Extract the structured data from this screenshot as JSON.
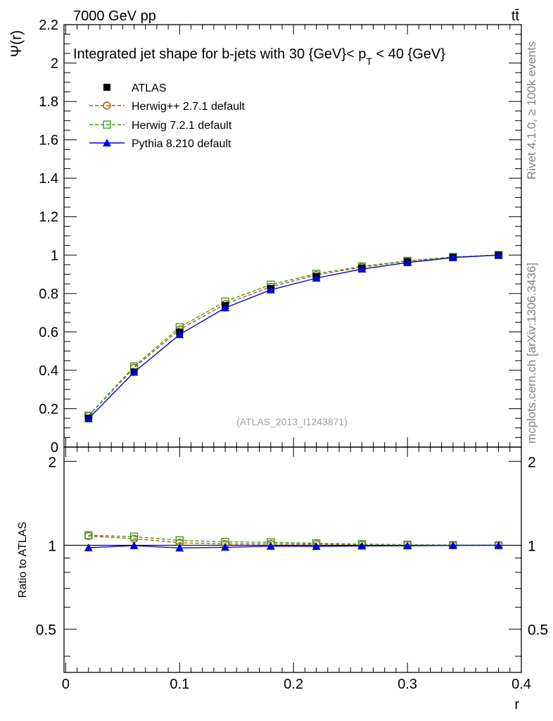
{
  "header": {
    "energy_label": "7000 GeV pp",
    "process_label": "tt̄"
  },
  "side_labels": {
    "rivet": "Rivet 4.1.0, ≥ 100k events",
    "mcplots": "mcplots.cern.ch [arXiv:1306.3436]"
  },
  "chart_data": {
    "type": "line",
    "title_prefix": "Integrated jet shape for b-jets with 30 {GeV}< p",
    "title_sub": "T",
    "title_suffix": " < 40 {GeV}",
    "watermark": "(ATLAS_2013_I1243871)",
    "xlabel": "r",
    "ylabel": "Ψ(r)",
    "ratio_ylabel": "Ratio to ATLAS",
    "xlim": [
      -0.0015,
      0.4
    ],
    "ylim": [
      0,
      2.2
    ],
    "ratio_ylim": [
      0.35,
      2.25
    ],
    "x_ticks": [
      {
        "v": 0,
        "label": "0"
      },
      {
        "v": 0.1,
        "label": "0.1"
      },
      {
        "v": 0.2,
        "label": "0.2"
      },
      {
        "v": 0.3,
        "label": "0.3"
      },
      {
        "v": 0.4,
        "label": "0.4"
      }
    ],
    "y_ticks": [
      {
        "v": 0,
        "label": "0"
      },
      {
        "v": 0.2,
        "label": "0.2"
      },
      {
        "v": 0.4,
        "label": "0.4"
      },
      {
        "v": 0.6,
        "label": "0.6"
      },
      {
        "v": 0.8,
        "label": "0.8"
      },
      {
        "v": 1.0,
        "label": "1"
      },
      {
        "v": 1.2,
        "label": "1.2"
      },
      {
        "v": 1.4,
        "label": "1.4"
      },
      {
        "v": 1.6,
        "label": "1.6"
      },
      {
        "v": 1.8,
        "label": "1.8"
      },
      {
        "v": 2.0,
        "label": "2"
      },
      {
        "v": 2.2,
        "label": "2.2"
      }
    ],
    "ratio_ticks": [
      {
        "v": 0.5,
        "label": "0.5"
      },
      {
        "v": 1,
        "label": "1"
      },
      {
        "v": 2,
        "label": "2"
      }
    ],
    "x": [
      0.02,
      0.06,
      0.1,
      0.14,
      0.18,
      0.22,
      0.26,
      0.3,
      0.34,
      0.38
    ],
    "series": [
      {
        "name": "ATLAS",
        "marker": "filled-square",
        "color": "#000000",
        "dashed": false,
        "values": [
          0.151,
          0.391,
          0.599,
          0.737,
          0.825,
          0.888,
          0.932,
          0.965,
          0.988,
          1.0
        ],
        "errors": [
          0.012,
          0.014,
          0.014,
          0.012,
          0.01,
          0.008,
          0.006,
          0.004,
          0.003,
          0.0
        ]
      },
      {
        "name": "Herwig++ 2.7.1 default",
        "marker": "open-circle",
        "color": "#b05a00",
        "dashed": true,
        "values": [
          0.163,
          0.413,
          0.612,
          0.745,
          0.835,
          0.896,
          0.937,
          0.968,
          0.989,
          1.0
        ]
      },
      {
        "name": "Herwig 7.2.1 default",
        "marker": "open-square",
        "color": "#3e9e1a",
        "dashed": true,
        "values": [
          0.164,
          0.42,
          0.624,
          0.758,
          0.846,
          0.903,
          0.941,
          0.97,
          0.99,
          1.0
        ]
      },
      {
        "name": "Pythia 8.210 default",
        "marker": "filled-triangle",
        "color": "#0000e0",
        "dashed": false,
        "values": [
          0.148,
          0.39,
          0.586,
          0.725,
          0.819,
          0.88,
          0.927,
          0.961,
          0.987,
          1.0
        ]
      }
    ]
  }
}
